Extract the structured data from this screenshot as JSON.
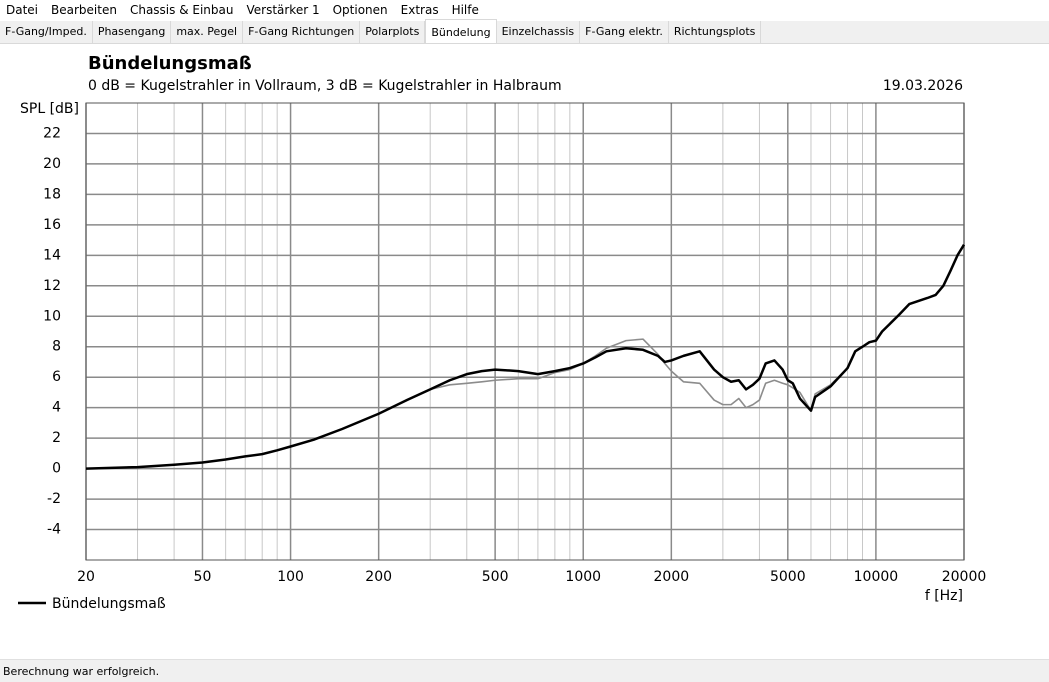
{
  "menu": [
    "Datei",
    "Bearbeiten",
    "Chassis & Einbau",
    "Verstärker 1",
    "Optionen",
    "Extras",
    "Hilfe"
  ],
  "tabs": [
    {
      "label": "F-Gang/Imped."
    },
    {
      "label": "Phasengang"
    },
    {
      "label": "max. Pegel"
    },
    {
      "label": "F-Gang Richtungen"
    },
    {
      "label": "Polarplots"
    },
    {
      "label": "Bündelung",
      "selected": true
    },
    {
      "label": "Einzelchassis"
    },
    {
      "label": "F-Gang elektr."
    },
    {
      "label": "Richtungsplots"
    }
  ],
  "chart_data": {
    "type": "line",
    "title": "Bündelungsmaß",
    "subtitle": "0 dB = Kugelstrahler in Vollraum, 3 dB = Kugelstrahler in Halbraum",
    "date": "19.03.2026",
    "ylabel": "SPL [dB]",
    "xlabel": "f [Hz]",
    "xscale": "log",
    "grid": true,
    "xlim": [
      20,
      20000
    ],
    "ylim": [
      -6,
      24
    ],
    "xticks": [
      20,
      50,
      100,
      200,
      500,
      1000,
      2000,
      5000,
      10000,
      20000
    ],
    "xgrid": [
      30,
      40,
      60,
      70,
      80,
      90,
      300,
      400,
      600,
      700,
      800,
      900,
      3000,
      4000,
      6000,
      7000,
      8000,
      9000
    ],
    "yticks": [
      -4,
      -2,
      0,
      2,
      4,
      6,
      8,
      10,
      12,
      14,
      16,
      18,
      20,
      22
    ],
    "x": [
      20,
      30,
      40,
      50,
      60,
      70,
      80,
      90,
      100,
      120,
      150,
      200,
      250,
      300,
      350,
      400,
      450,
      500,
      600,
      700,
      800,
      900,
      1000,
      1100,
      1200,
      1400,
      1600,
      1800,
      1900,
      2000,
      2200,
      2500,
      2800,
      3000,
      3200,
      3400,
      3600,
      3800,
      4000,
      4200,
      4500,
      4800,
      5000,
      5200,
      5500,
      6000,
      6200,
      7000,
      8000,
      8500,
      9000,
      9500,
      10000,
      10500,
      12000,
      13000,
      15000,
      16000,
      17000,
      18000,
      19000,
      20000
    ],
    "series": [
      {
        "color": "#8c8c8c",
        "values": [
          0,
          0.1,
          0.25,
          0.4,
          0.6,
          0.8,
          0.95,
          1.2,
          1.45,
          1.9,
          2.6,
          3.6,
          4.5,
          5.2,
          5.5,
          5.6,
          5.7,
          5.8,
          5.9,
          5.9,
          6.3,
          6.5,
          6.9,
          7.4,
          7.9,
          8.4,
          8.5,
          7.5,
          6.9,
          6.4,
          5.7,
          5.6,
          4.5,
          4.2,
          4.2,
          4.6,
          4.0,
          4.2,
          4.5,
          5.6,
          5.8,
          5.6,
          5.5,
          5.3,
          5.0,
          3.8,
          4.9,
          5.5,
          6.6,
          7.7,
          8.0,
          8.3,
          8.4,
          9.0,
          10.1,
          10.8,
          11.2,
          11.4,
          12.0,
          13.0,
          14.0,
          14.7
        ]
      },
      {
        "name": "Bündelungsmaß",
        "color": "#000000",
        "values": [
          0,
          0.1,
          0.25,
          0.4,
          0.6,
          0.8,
          0.95,
          1.2,
          1.45,
          1.9,
          2.6,
          3.6,
          4.5,
          5.2,
          5.8,
          6.2,
          6.4,
          6.5,
          6.4,
          6.2,
          6.4,
          6.6,
          6.9,
          7.3,
          7.7,
          7.9,
          7.8,
          7.4,
          7.0,
          7.1,
          7.4,
          7.7,
          6.5,
          6.0,
          5.7,
          5.8,
          5.2,
          5.5,
          5.9,
          6.9,
          7.1,
          6.5,
          5.8,
          5.6,
          4.6,
          3.8,
          4.7,
          5.4,
          6.6,
          7.7,
          8.0,
          8.3,
          8.4,
          9.0,
          10.1,
          10.8,
          11.2,
          11.4,
          12.0,
          13.0,
          14.0,
          14.7
        ]
      }
    ]
  },
  "status": "Berechnung war erfolgreich."
}
